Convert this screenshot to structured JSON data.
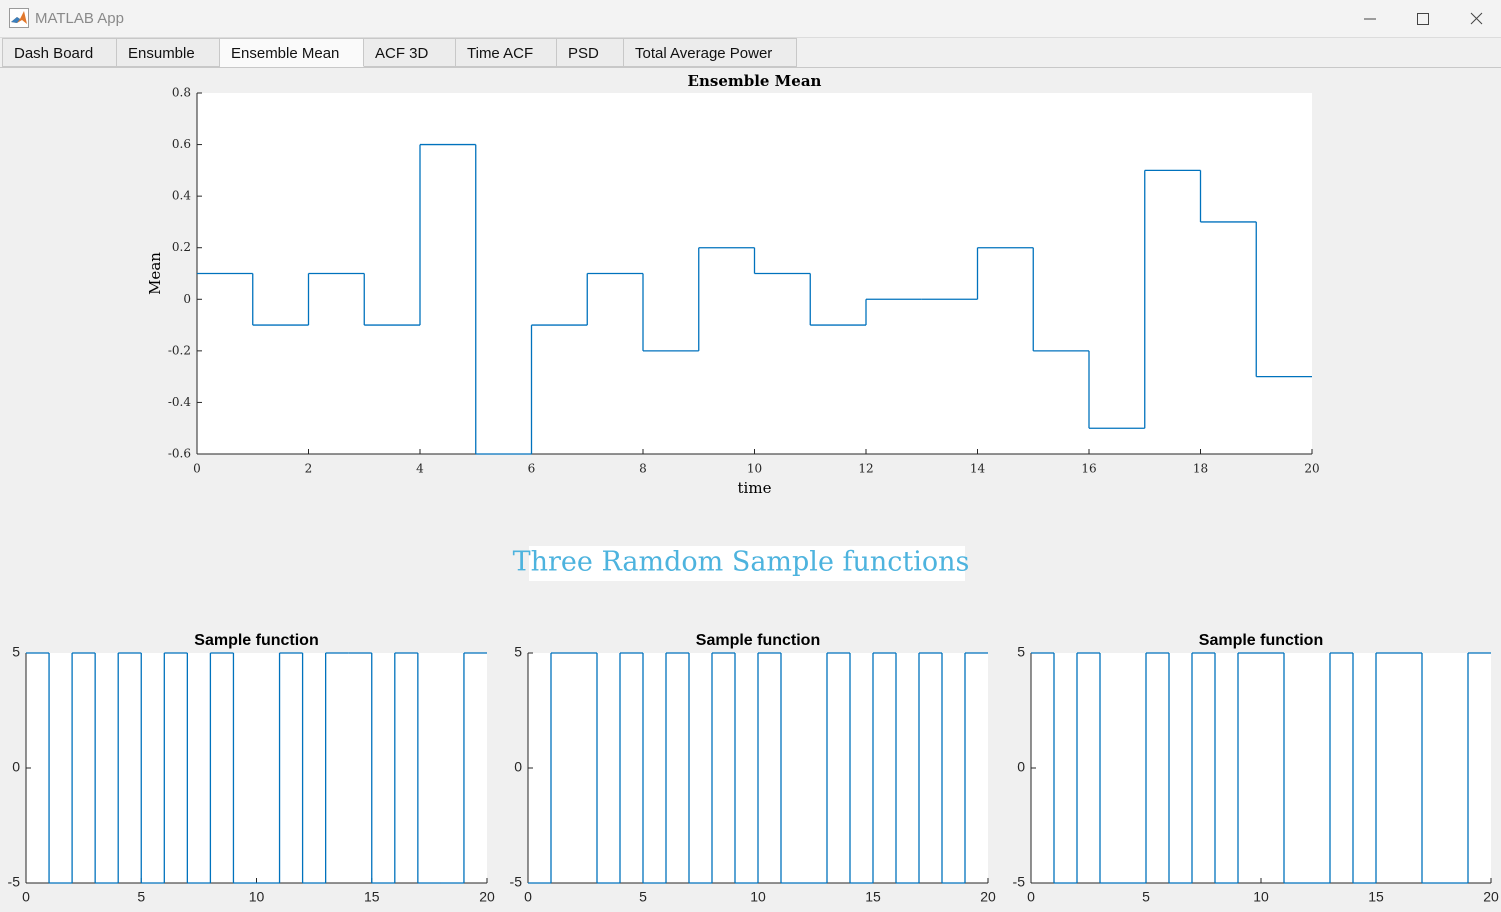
{
  "window": {
    "title": "MATLAB App"
  },
  "tabs": [
    "Dash Board",
    "Ensumble",
    "Ensemble Mean",
    "ACF 3D",
    "Time ACF",
    "PSD",
    "Total Average Power"
  ],
  "active_tab": 2,
  "heading": "Three Ramdom Sample functions",
  "chart_data": [
    {
      "type": "step",
      "title": "Ensemble Mean",
      "xlabel": "time",
      "ylabel": "Mean",
      "color": "#0072bd",
      "x": [
        0,
        1,
        2,
        3,
        4,
        5,
        6,
        7,
        8,
        9,
        10,
        11,
        12,
        13,
        14,
        15,
        16,
        17,
        18,
        19
      ],
      "values": [
        0.1,
        -0.1,
        0.1,
        -0.1,
        0.6,
        -0.6,
        -0.1,
        0.1,
        -0.2,
        0.2,
        0.1,
        -0.1,
        0,
        0,
        0.2,
        -0.2,
        -0.5,
        0.5,
        0.3,
        -0.3
      ],
      "xlim": [
        0,
        20
      ],
      "ylim": [
        -0.6,
        0.8
      ],
      "xticks": [
        0,
        2,
        4,
        6,
        8,
        10,
        12,
        14,
        16,
        18,
        20
      ],
      "yticks": [
        -0.6,
        -0.4,
        -0.2,
        0,
        0.2,
        0.4,
        0.6,
        0.8
      ]
    },
    {
      "type": "step",
      "title": "Sample function",
      "color": "#0072bd",
      "x": [
        0,
        1,
        2,
        3,
        4,
        5,
        6,
        7,
        8,
        9,
        10,
        11,
        12,
        13,
        14,
        15,
        16,
        17,
        18,
        19
      ],
      "values": [
        5,
        -5,
        5,
        -5,
        5,
        -5,
        5,
        -5,
        5,
        -5,
        -5,
        5,
        -5,
        5,
        5,
        -5,
        5,
        -5,
        -5,
        5
      ],
      "xlim": [
        0,
        20
      ],
      "ylim": [
        -5,
        5
      ],
      "xticks": [
        0,
        5,
        10,
        15,
        20
      ],
      "yticks": [
        -5,
        0,
        5
      ]
    },
    {
      "type": "step",
      "title": "Sample function",
      "color": "#0072bd",
      "x": [
        0,
        1,
        2,
        3,
        4,
        5,
        6,
        7,
        8,
        9,
        10,
        11,
        12,
        13,
        14,
        15,
        16,
        17,
        18,
        19
      ],
      "values": [
        -5,
        5,
        5,
        -5,
        5,
        -5,
        5,
        -5,
        5,
        -5,
        5,
        -5,
        -5,
        5,
        -5,
        5,
        -5,
        5,
        -5,
        5
      ],
      "xlim": [
        0,
        20
      ],
      "ylim": [
        -5,
        5
      ],
      "xticks": [
        0,
        5,
        10,
        15,
        20
      ],
      "yticks": [
        -5,
        0,
        5
      ]
    },
    {
      "type": "step",
      "title": "Sample function",
      "color": "#0072bd",
      "x": [
        0,
        1,
        2,
        3,
        4,
        5,
        6,
        7,
        8,
        9,
        10,
        11,
        12,
        13,
        14,
        15,
        16,
        17,
        18,
        19
      ],
      "values": [
        5,
        -5,
        5,
        -5,
        -5,
        5,
        -5,
        5,
        -5,
        5,
        5,
        -5,
        -5,
        5,
        -5,
        5,
        5,
        -5,
        -5,
        5
      ],
      "xlim": [
        0,
        20
      ],
      "ylim": [
        -5,
        5
      ],
      "xticks": [
        0,
        5,
        10,
        15,
        20
      ],
      "yticks": [
        -5,
        0,
        5
      ]
    }
  ]
}
